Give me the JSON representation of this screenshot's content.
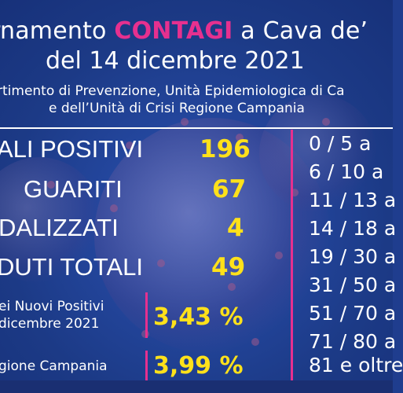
{
  "title": {
    "part1": "rnamento ",
    "highlight": "CONTAGI",
    "part2": " a Cava de’",
    "line2": "del 14 dicembre 2021"
  },
  "subtitle": {
    "line1": "rtimento di Prevenzione, Unità Epidemiologica di Ca",
    "line2": "e dell’Unità di Crisi Regione Campania"
  },
  "stats": [
    {
      "label": "ALI POSITIVI",
      "value": "196"
    },
    {
      "label": "GUARITI",
      "value": "67"
    },
    {
      "label": "DALIZZATI",
      "value": "4"
    },
    {
      "label": "DUTI TOTALI",
      "value": "49"
    }
  ],
  "percentages": [
    {
      "label_line1": "ei Nuovi Positivi",
      "label_line2": "dicembre 2021",
      "value": "3,43 %"
    },
    {
      "label_line1": "gione Campania",
      "value": "3,99 %"
    }
  ],
  "age_groups": [
    "0  /   5 a",
    "6  /  10 a",
    "11  /  13 a",
    "14 / 18  a",
    "19 / 30 a",
    "31 / 50 a",
    "51 / 70 a",
    "71 / 80 a",
    "81 e oltre"
  ],
  "colors": {
    "background": "#1f3d8e",
    "highlight_pink": "#e6308f",
    "value_yellow": "#ffe11a",
    "text_white": "#ffffff"
  }
}
